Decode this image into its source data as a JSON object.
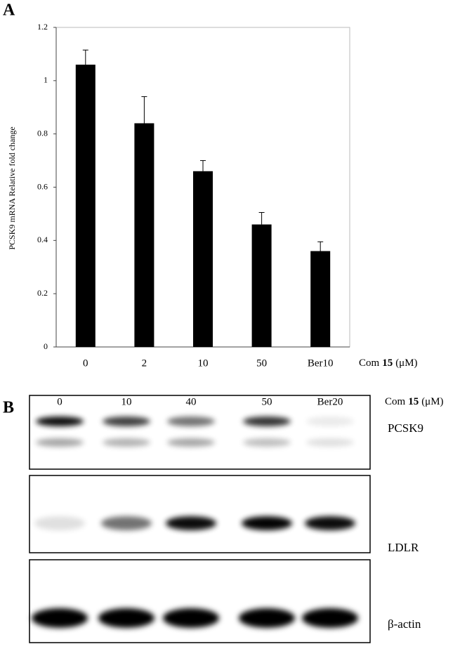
{
  "chart_data": {
    "type": "bar",
    "panel_label": "A",
    "y_label": "PCSK9 mRNA Relative fold change",
    "x_label": [
      "Com",
      "15",
      "(μM)"
    ],
    "categories": [
      "0",
      "2",
      "10",
      "50",
      "Ber10"
    ],
    "values": [
      1.06,
      0.84,
      0.66,
      0.46,
      0.36
    ],
    "errors": [
      0.055,
      0.1,
      0.04,
      0.045,
      0.035
    ],
    "color": "#000000",
    "ylim": [
      0,
      1.2
    ],
    "yticks": [
      0,
      0.2,
      0.4,
      0.6,
      0.8,
      1,
      1.2
    ],
    "grid": false
  },
  "panel_b": {
    "label": "B",
    "lanes": [
      "0",
      "10",
      "40",
      "50",
      "Ber20"
    ],
    "x_label": [
      "Com",
      "15",
      "(μM)"
    ],
    "blots": [
      "PCSK9",
      "LDLR",
      "β-actin"
    ]
  }
}
